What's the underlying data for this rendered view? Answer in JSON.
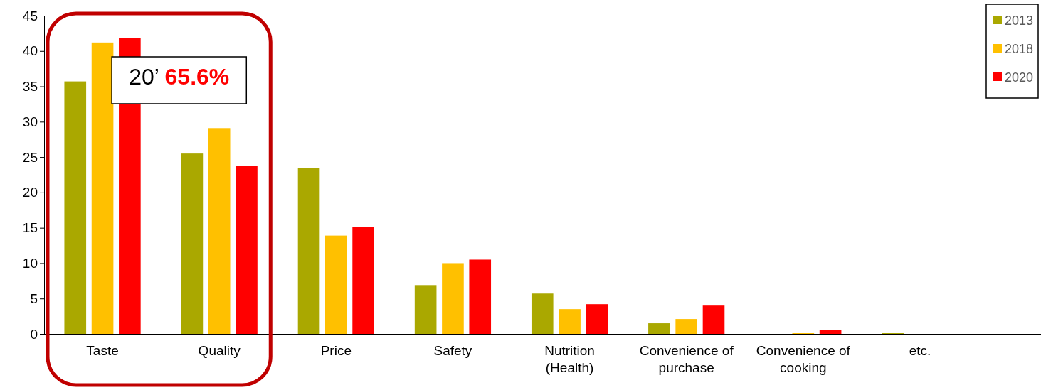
{
  "chart_data": {
    "type": "bar",
    "categories": [
      "Taste",
      "Quality",
      "Price",
      "Safety",
      "Nutrition (Health)",
      "Convenience of purchase",
      "Convenience of cooking",
      "etc."
    ],
    "series": [
      {
        "name": "2013",
        "color": "#aaa800",
        "values": [
          35.7,
          25.5,
          23.5,
          6.9,
          5.7,
          1.5,
          0,
          0.1
        ]
      },
      {
        "name": "2018",
        "color": "#ffc000",
        "values": [
          41.2,
          29.1,
          13.9,
          10.0,
          3.5,
          2.1,
          0.1,
          0
        ]
      },
      {
        "name": "2020",
        "color": "#ff0000",
        "values": [
          41.8,
          23.8,
          15.1,
          10.5,
          4.2,
          4.0,
          0.6,
          0
        ]
      }
    ],
    "ylim": [
      0,
      45
    ],
    "yticks": [
      0,
      5,
      10,
      15,
      20,
      25,
      30,
      35,
      40,
      45
    ],
    "legend": "top right",
    "annotations": [
      "20’ 65.6%"
    ]
  }
}
